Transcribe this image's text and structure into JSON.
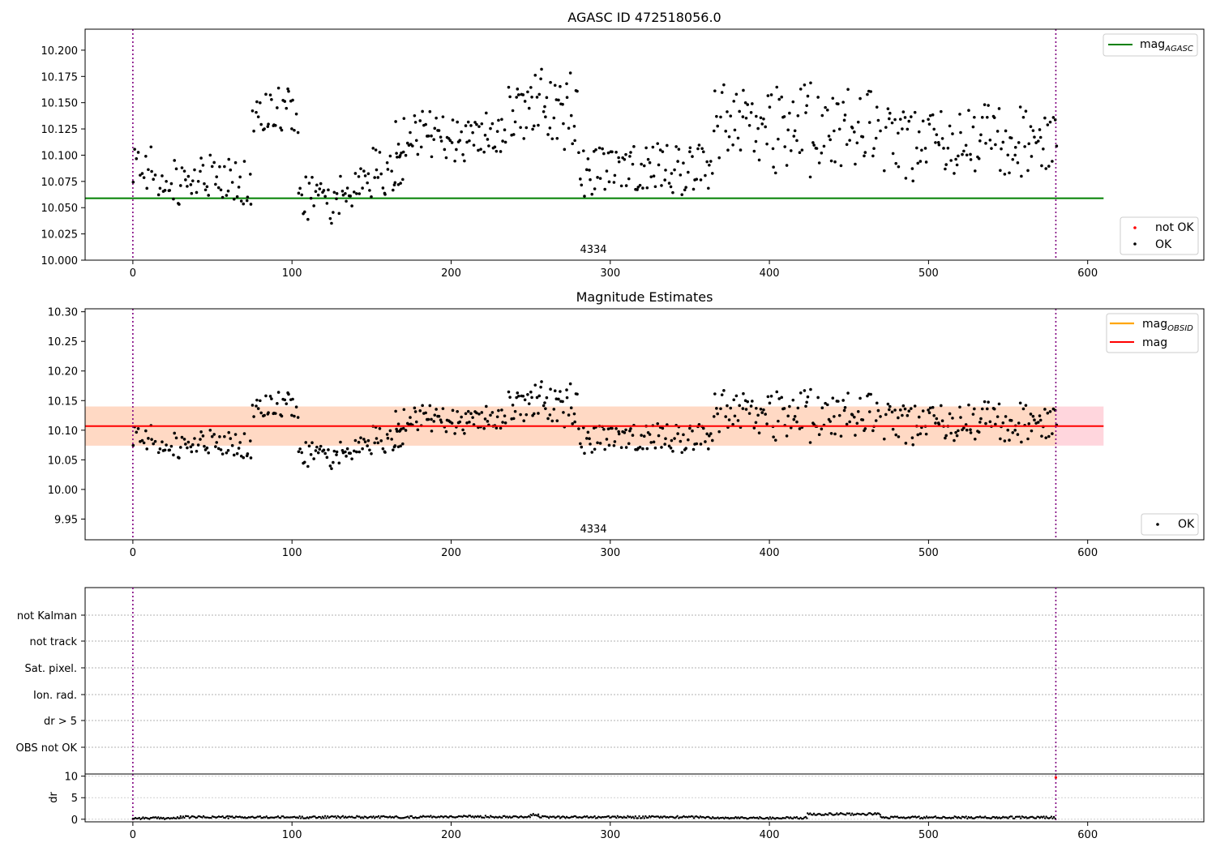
{
  "colors": {
    "points_ok": "#000000",
    "points_not_ok": "#ff0000",
    "mag_agasc": "#008000",
    "mag_obsid": "#ffa500",
    "mag": "#ff0000",
    "vline": "#800080",
    "band_outer": "#ffd6dd",
    "band_inner": "#ffd9c4"
  },
  "chart_data": [
    {
      "type": "scatter",
      "title": "AGASC ID 472518056.0",
      "xlim": [
        -30,
        673
      ],
      "ylim": [
        10.0,
        10.22
      ],
      "xticks": [
        0,
        100,
        200,
        300,
        400,
        500,
        600
      ],
      "yticks": [
        10.0,
        10.025,
        10.05,
        10.075,
        10.1,
        10.125,
        10.15,
        10.175,
        10.2
      ],
      "ytick_labels": [
        "10.000",
        "10.025",
        "10.050",
        "10.075",
        "10.100",
        "10.125",
        "10.150",
        "10.175",
        "10.200"
      ],
      "vlines": [
        0,
        580
      ],
      "annotation": {
        "text": "4334",
        "x": 290
      },
      "hlines": [
        {
          "name": "mag_AGASC",
          "y": 10.059,
          "x": [
            -30,
            610
          ]
        }
      ],
      "legend_lines": [
        {
          "base": "mag",
          "sub": "AGASC"
        }
      ],
      "legend_points": [
        "not OK",
        "OK"
      ],
      "segments": [
        {
          "x": [
            0,
            15
          ],
          "ymin": 10.048,
          "ymax": 10.13,
          "seed": 11,
          "n": 14
        },
        {
          "x": [
            16,
            75
          ],
          "ymin": 10.04,
          "ymax": 10.106,
          "seed": 12,
          "n": 60
        },
        {
          "x": [
            75,
            104
          ],
          "ymin": 10.114,
          "ymax": 10.17,
          "seed": 13,
          "n": 32
        },
        {
          "x": [
            104,
            145
          ],
          "ymin": 10.029,
          "ymax": 10.096,
          "seed": 14,
          "n": 44
        },
        {
          "x": [
            145,
            170
          ],
          "ymin": 10.05,
          "ymax": 10.115,
          "seed": 15,
          "n": 28
        },
        {
          "x": [
            165,
            235
          ],
          "ymin": 10.085,
          "ymax": 10.152,
          "seed": 16,
          "n": 80
        },
        {
          "x": [
            236,
            280
          ],
          "ymin": 10.095,
          "ymax": 10.192,
          "seed": 17,
          "n": 55
        },
        {
          "x": [
            280,
            362
          ],
          "ymin": 10.054,
          "ymax": 10.12,
          "seed": 18,
          "n": 90
        },
        {
          "x": [
            362,
            470
          ],
          "ymin": 10.067,
          "ymax": 10.184,
          "seed": 19,
          "n": 120
        },
        {
          "x": [
            472,
            581
          ],
          "ymin": 10.065,
          "ymax": 10.158,
          "seed": 20,
          "n": 120
        }
      ]
    },
    {
      "type": "scatter",
      "title": "Magnitude Estimates",
      "xlim": [
        -30,
        673
      ],
      "ylim": [
        9.915,
        10.305
      ],
      "xticks": [
        0,
        100,
        200,
        300,
        400,
        500,
        600
      ],
      "yticks": [
        9.95,
        10.0,
        10.05,
        10.1,
        10.15,
        10.2,
        10.25,
        10.3
      ],
      "ytick_labels": [
        "9.95",
        "10.00",
        "10.05",
        "10.10",
        "10.15",
        "10.20",
        "10.25",
        "10.30"
      ],
      "vlines": [
        0,
        580
      ],
      "annotation": {
        "text": "4334",
        "x": 290
      },
      "band": {
        "y0": 10.074,
        "y1": 10.14,
        "x": [
          -30,
          610
        ]
      },
      "hlines": [
        {
          "name": "mag",
          "y": 10.107,
          "x": [
            -30,
            610
          ]
        }
      ],
      "legend_lines": [
        {
          "base": "mag",
          "sub": "OBSID"
        },
        {
          "base": "mag",
          "sub": ""
        }
      ],
      "legend_points": [
        "OK"
      ]
    },
    {
      "type": "scatter",
      "title": "",
      "xlim": [
        -30,
        673
      ],
      "flag_labels": [
        "not Kalman",
        "not track",
        "Sat. pixel.",
        "Ion. rad.",
        "dr > 5",
        "OBS not OK"
      ],
      "vlines": [
        0,
        580
      ]
    },
    {
      "type": "scatter",
      "title": "",
      "xlim": [
        -30,
        673
      ],
      "ylim": [
        -0.6,
        10.5
      ],
      "xticks": [
        0,
        100,
        200,
        300,
        400,
        500,
        600
      ],
      "yticks": [
        0,
        5,
        10
      ],
      "ytick_labels": [
        "0",
        "5",
        "10"
      ],
      "ylabel": "dr",
      "vlines": [
        0,
        580
      ],
      "dr_levels": [
        {
          "x": [
            0,
            30
          ],
          "y": 0.25
        },
        {
          "x": [
            30,
            60
          ],
          "y": 0.5
        },
        {
          "x": [
            60,
            120
          ],
          "y": 0.45
        },
        {
          "x": [
            120,
            180
          ],
          "y": 0.5
        },
        {
          "x": [
            180,
            250
          ],
          "y": 0.6
        },
        {
          "x": [
            250,
            255
          ],
          "y": 1.0
        },
        {
          "x": [
            255,
            362
          ],
          "y": 0.5
        },
        {
          "x": [
            362,
            424
          ],
          "y": 0.3
        },
        {
          "x": [
            424,
            470
          ],
          "y": 1.2
        },
        {
          "x": [
            470,
            580
          ],
          "y": 0.4
        }
      ],
      "not_ok_point": {
        "x": 580,
        "y": 9.7
      }
    }
  ]
}
